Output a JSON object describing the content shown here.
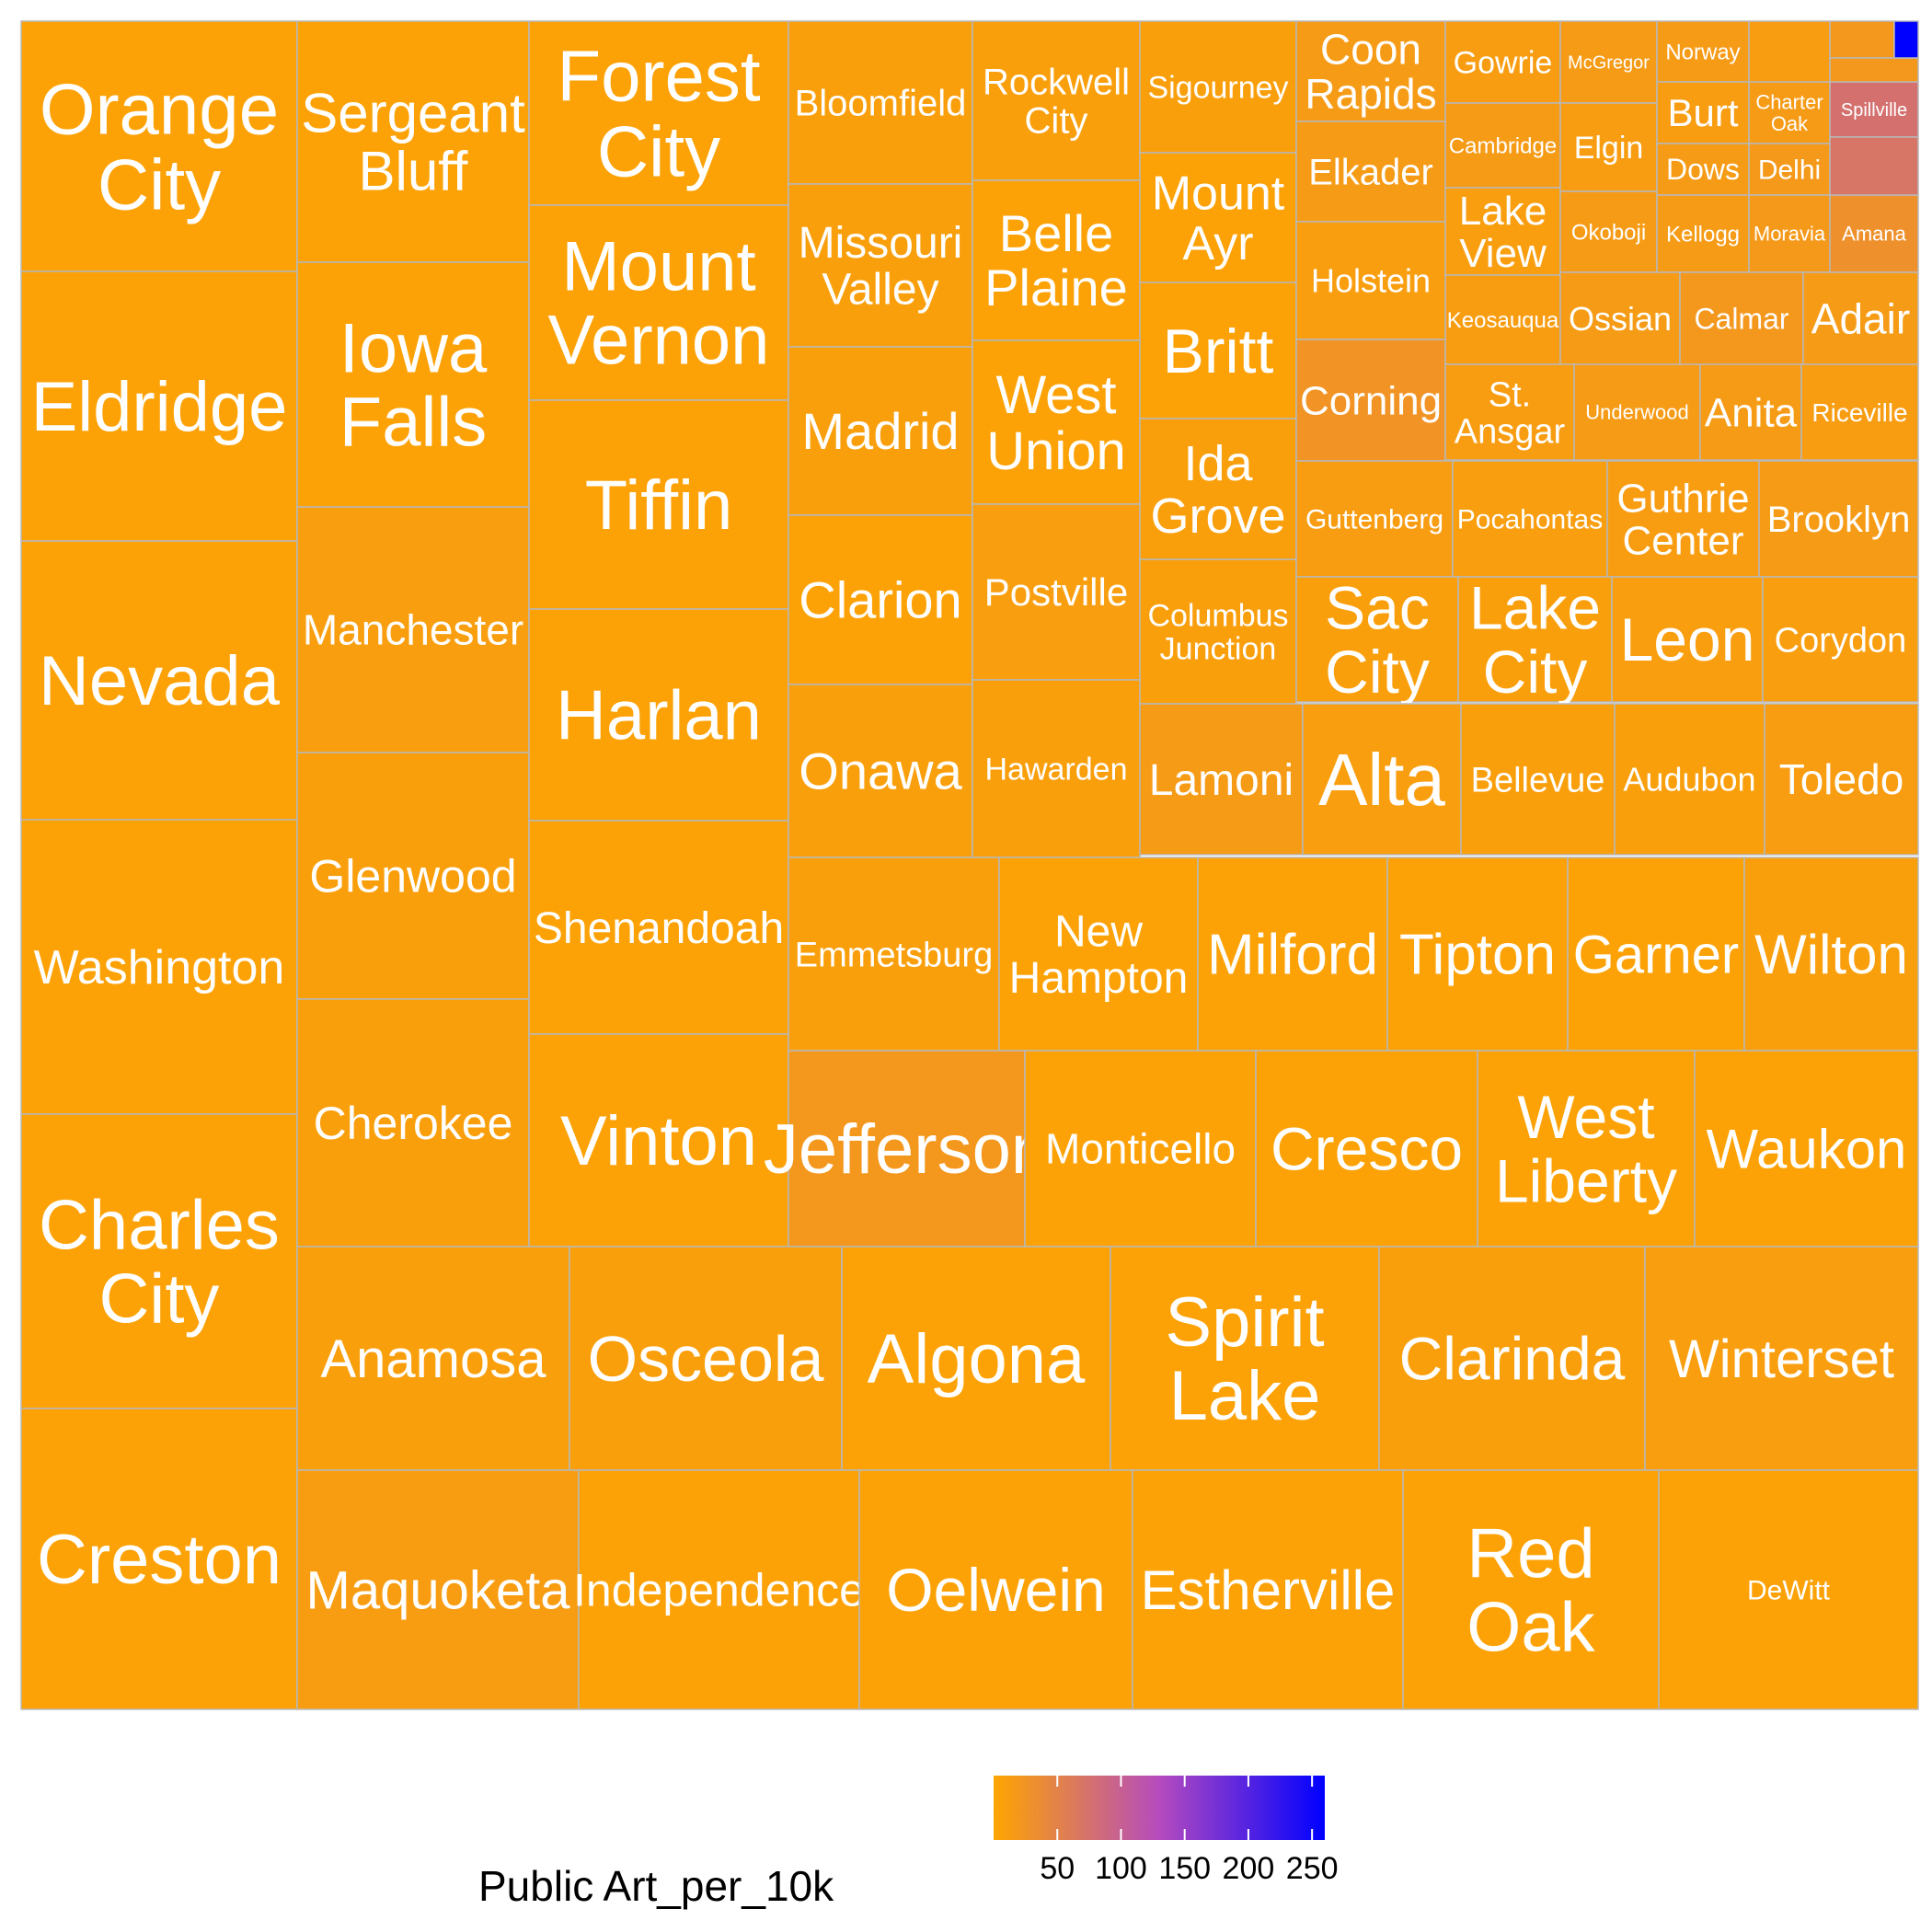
{
  "chart_data": {
    "type": "treemap",
    "value_label": "Public Art_per_10k",
    "colors": {
      "low": "#FFA500",
      "mid": "#B54BBE",
      "high": "#0000FF"
    },
    "color_range": [
      0,
      260
    ],
    "legend": {
      "title": "Public Art_per_10k",
      "ticks": [
        50,
        100,
        150,
        200,
        250
      ],
      "placement": "bottom"
    },
    "items": [
      {
        "name": "Orange City",
        "value": 5
      },
      {
        "name": "Eldridge",
        "value": 5
      },
      {
        "name": "Nevada",
        "value": 5
      },
      {
        "name": "Washington",
        "value": 5
      },
      {
        "name": "Charles City",
        "value": 5
      },
      {
        "name": "Creston",
        "value": 5
      },
      {
        "name": "Sergeant Bluff",
        "value": 5
      },
      {
        "name": "Iowa Falls",
        "value": 5
      },
      {
        "name": "Manchester",
        "value": 10
      },
      {
        "name": "Glenwood",
        "value": 8
      },
      {
        "name": "Cherokee",
        "value": 8
      },
      {
        "name": "Forest City",
        "value": 5
      },
      {
        "name": "Mount Vernon",
        "value": 5
      },
      {
        "name": "Tiffin",
        "value": 5
      },
      {
        "name": "Harlan",
        "value": 5
      },
      {
        "name": "Shenandoah",
        "value": 5
      },
      {
        "name": "Vinton",
        "value": 5
      },
      {
        "name": "Bloomfield",
        "value": 8
      },
      {
        "name": "Missouri Valley",
        "value": 8
      },
      {
        "name": "Madrid",
        "value": 8
      },
      {
        "name": "Clarion",
        "value": 5
      },
      {
        "name": "Onawa",
        "value": 8
      },
      {
        "name": "Rockwell City",
        "value": 8
      },
      {
        "name": "Belle Plaine",
        "value": 5
      },
      {
        "name": "West Union",
        "value": 5
      },
      {
        "name": "Postville",
        "value": 10
      },
      {
        "name": "Hawarden",
        "value": 8
      },
      {
        "name": "Sigourney",
        "value": 8
      },
      {
        "name": "Mount Ayr",
        "value": 5
      },
      {
        "name": "Britt",
        "value": 5
      },
      {
        "name": "Ida Grove",
        "value": 8
      },
      {
        "name": "Columbus Junction",
        "value": 8
      },
      {
        "name": "Coon Rapids",
        "value": 15
      },
      {
        "name": "Elkader",
        "value": 15
      },
      {
        "name": "Holstein",
        "value": 10
      },
      {
        "name": "Corning",
        "value": 25
      },
      {
        "name": "Gowrie",
        "value": 12
      },
      {
        "name": "Cambridge",
        "value": 15
      },
      {
        "name": "Lake View",
        "value": 10
      },
      {
        "name": "Keosauqua",
        "value": 12
      },
      {
        "name": "McGregor",
        "value": 15
      },
      {
        "name": "Elgin",
        "value": 12
      },
      {
        "name": "Okoboji",
        "value": 15
      },
      {
        "name": "Norway",
        "value": 15
      },
      {
        "name": "Burt",
        "value": 12
      },
      {
        "name": "Dows",
        "value": 15
      },
      {
        "name": "Charter Oak",
        "value": 15
      },
      {
        "name": "Delhi",
        "value": 18
      },
      {
        "name": "Kellogg",
        "value": 15
      },
      {
        "name": "Moravia",
        "value": 18
      },
      {
        "name": "Amana",
        "value": 30
      },
      {
        "name": "Spillville",
        "value": 75
      },
      {
        "name": "Ossian",
        "value": 15
      },
      {
        "name": "Calmar",
        "value": 20
      },
      {
        "name": "Adair",
        "value": 15
      },
      {
        "name": "St. Ansgar",
        "value": 12
      },
      {
        "name": "Underwood",
        "value": 15
      },
      {
        "name": "Anita",
        "value": 15
      },
      {
        "name": "Riceville",
        "value": 12
      },
      {
        "name": "Guttenberg",
        "value": 12
      },
      {
        "name": "Pocahontas",
        "value": 10
      },
      {
        "name": "Guthrie Center",
        "value": 12
      },
      {
        "name": "Brooklyn",
        "value": 15
      },
      {
        "name": "Sac City",
        "value": 8
      },
      {
        "name": "Lake City",
        "value": 8
      },
      {
        "name": "Leon",
        "value": 10
      },
      {
        "name": "Corydon",
        "value": 10
      },
      {
        "name": "Lamoni",
        "value": 15
      },
      {
        "name": "Alta",
        "value": 10
      },
      {
        "name": "Bellevue",
        "value": 8
      },
      {
        "name": "Audubon",
        "value": 8
      },
      {
        "name": "Toledo",
        "value": 12
      },
      {
        "name": "Emmetsburg",
        "value": 8
      },
      {
        "name": "New Hampton",
        "value": 5
      },
      {
        "name": "Milford",
        "value": 5
      },
      {
        "name": "Tipton",
        "value": 5
      },
      {
        "name": "Garner",
        "value": 5
      },
      {
        "name": "Wilton",
        "value": 8
      },
      {
        "name": "Jefferson",
        "value": 20
      },
      {
        "name": "Monticello",
        "value": 5
      },
      {
        "name": "Cresco",
        "value": 5
      },
      {
        "name": "West Liberty",
        "value": 5
      },
      {
        "name": "Waukon",
        "value": 5
      },
      {
        "name": "Anamosa",
        "value": 8
      },
      {
        "name": "Osceola",
        "value": 8
      },
      {
        "name": "Algona",
        "value": 5
      },
      {
        "name": "Spirit Lake",
        "value": 5
      },
      {
        "name": "Clarinda",
        "value": 8
      },
      {
        "name": "Winterset",
        "value": 10
      },
      {
        "name": "Maquoketa",
        "value": 12
      },
      {
        "name": "Independence",
        "value": 5
      },
      {
        "name": "Oelwein",
        "value": 5
      },
      {
        "name": "Estherville",
        "value": 5
      },
      {
        "name": "Red Oak",
        "value": 5
      },
      {
        "name": "DeWitt",
        "value": 5
      },
      {
        "name": "",
        "value": 12
      },
      {
        "name": "",
        "value": 20
      },
      {
        "name": "",
        "value": 20
      },
      {
        "name": "",
        "value": 70
      },
      {
        "name": "",
        "value": 260
      }
    ]
  }
}
